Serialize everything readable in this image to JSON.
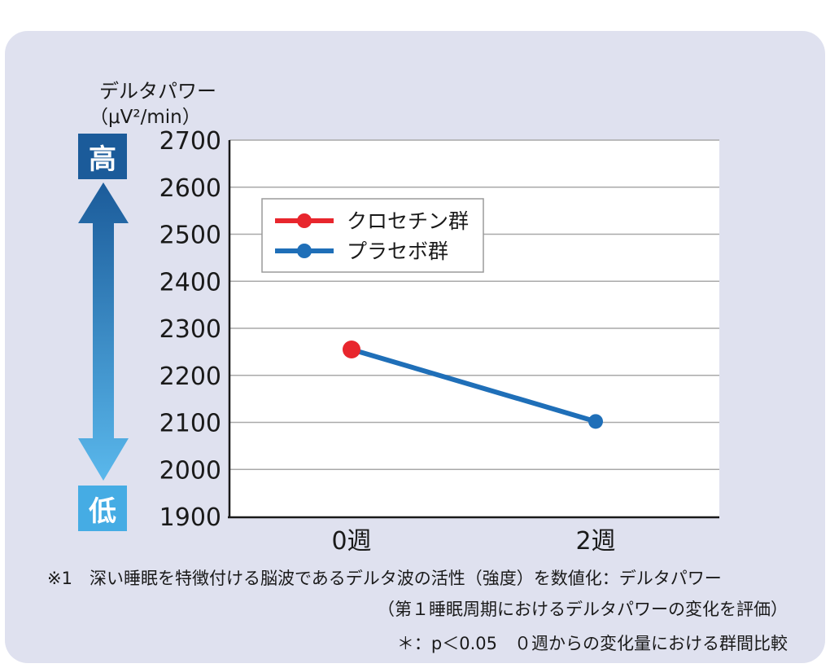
{
  "y_axis_label_line1": "デルタパワー",
  "y_axis_label_line2": "（μV²/min）",
  "scale_high_label": "高",
  "scale_low_label": "低",
  "colors": {
    "crocetin": "#e8262d",
    "placebo": "#1f6fb8",
    "grid": "#a9a9a9",
    "arrow_top": "#1b5b9a",
    "arrow_bottom": "#5ab8ec"
  },
  "chart_data": {
    "type": "line",
    "x": [
      "0週",
      "2週"
    ],
    "yticks": [
      1900,
      2000,
      2100,
      2200,
      2300,
      2400,
      2500,
      2600,
      2700
    ],
    "ylim": [
      1900,
      2700
    ],
    "grid": true,
    "legend_position": "top-left",
    "series": [
      {
        "name": "クロセチン群",
        "values": [
          2255,
          null
        ],
        "color": "#e8262d"
      },
      {
        "name": "プラセボ群",
        "values": [
          2255,
          2102
        ],
        "color": "#1f6fb8"
      }
    ]
  },
  "notes": {
    "note1": "※1　深い睡眠を特徴付ける脳波であるデルタ波の活性（強度）を数値化：デルタパワー",
    "note2": "（第１睡眠周期におけるデルタパワーの変化を評価）",
    "note3": "＊：p＜0.05　０週からの変化量における群間比較"
  }
}
